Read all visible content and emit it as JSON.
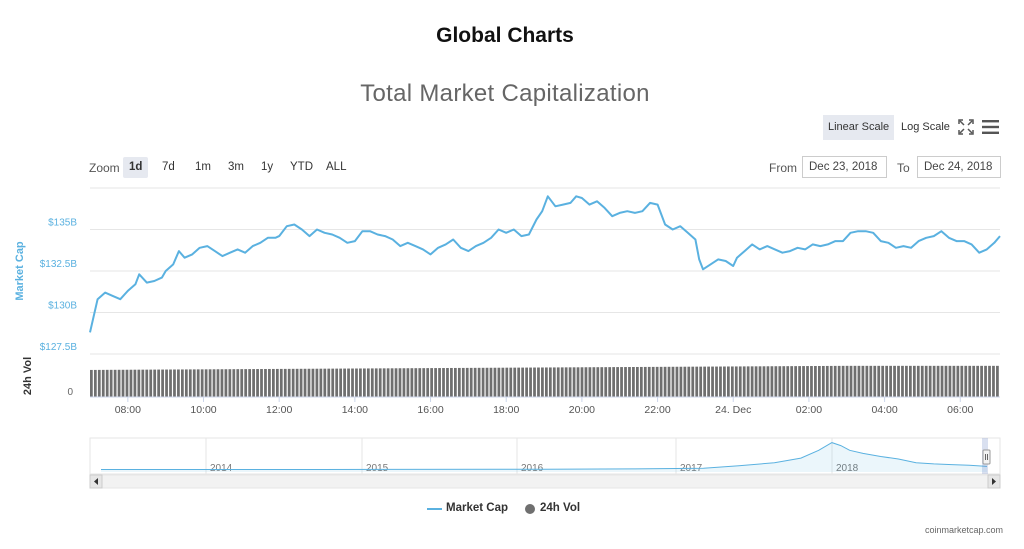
{
  "page": {
    "title": "Global Charts",
    "credit": "coinmarketcap.com"
  },
  "toolbar": {
    "linear_scale_label": "Linear Scale",
    "log_scale_label": "Log Scale",
    "fullscreen_icon": "fullscreen-icon",
    "menu_icon": "hamburger-menu-icon"
  },
  "zoom": {
    "label": "Zoom",
    "buttons": [
      "1d",
      "7d",
      "1m",
      "3m",
      "1y",
      "YTD",
      "ALL"
    ],
    "active": "1d"
  },
  "range": {
    "from_label": "From",
    "from_value": "Dec 23, 2018",
    "to_label": "To",
    "to_value": "Dec 24, 2018"
  },
  "colors": {
    "market_cap": "#5ab1e0",
    "volume": "#6f6f6f",
    "grid": "#e6e6e6",
    "active_button": "#e6e9f0"
  },
  "chart_data": {
    "type": "line",
    "title": "Total Market Capitalization",
    "ylabel": "Market Cap",
    "ylabel_volume": "24h Vol",
    "ylim": [
      127.5,
      137.5
    ],
    "ylim_volume_labels": [
      "0"
    ],
    "yticks": [
      "$127.5B",
      "$130B",
      "$132.5B",
      "$135B"
    ],
    "yticks_volume": [
      "0"
    ],
    "xticks": [
      "08:00",
      "10:00",
      "12:00",
      "14:00",
      "16:00",
      "18:00",
      "20:00",
      "22:00",
      "24. Dec",
      "02:00",
      "04:00",
      "06:00"
    ],
    "x_start_hour": 7.0,
    "x_end_hour": 31.05,
    "tick_hours": [
      8,
      10,
      12,
      14,
      16,
      18,
      20,
      22,
      24,
      26,
      28,
      30
    ],
    "series": [
      {
        "name": "Market Cap",
        "points": [
          [
            7.0,
            128.8
          ],
          [
            7.2,
            130.8
          ],
          [
            7.4,
            131.2
          ],
          [
            7.6,
            131.0
          ],
          [
            7.8,
            130.8
          ],
          [
            8.0,
            131.3
          ],
          [
            8.2,
            131.7
          ],
          [
            8.3,
            132.3
          ],
          [
            8.5,
            131.8
          ],
          [
            8.7,
            131.9
          ],
          [
            8.9,
            132.1
          ],
          [
            9.0,
            132.5
          ],
          [
            9.2,
            132.9
          ],
          [
            9.35,
            133.7
          ],
          [
            9.5,
            133.3
          ],
          [
            9.7,
            133.5
          ],
          [
            9.9,
            133.9
          ],
          [
            10.1,
            134.0
          ],
          [
            10.3,
            133.7
          ],
          [
            10.5,
            133.4
          ],
          [
            10.7,
            133.6
          ],
          [
            10.9,
            133.8
          ],
          [
            11.1,
            133.6
          ],
          [
            11.3,
            134.0
          ],
          [
            11.5,
            134.2
          ],
          [
            11.7,
            134.5
          ],
          [
            11.9,
            134.5
          ],
          [
            12.0,
            134.6
          ],
          [
            12.2,
            135.2
          ],
          [
            12.4,
            135.3
          ],
          [
            12.6,
            135.0
          ],
          [
            12.8,
            134.6
          ],
          [
            13.0,
            135.0
          ],
          [
            13.2,
            134.8
          ],
          [
            13.4,
            134.7
          ],
          [
            13.6,
            134.5
          ],
          [
            13.8,
            134.2
          ],
          [
            14.0,
            134.3
          ],
          [
            14.2,
            134.9
          ],
          [
            14.4,
            134.9
          ],
          [
            14.6,
            134.7
          ],
          [
            14.8,
            134.6
          ],
          [
            15.0,
            134.4
          ],
          [
            15.2,
            134.0
          ],
          [
            15.4,
            134.2
          ],
          [
            15.6,
            134.0
          ],
          [
            15.8,
            133.8
          ],
          [
            16.0,
            133.5
          ],
          [
            16.2,
            133.9
          ],
          [
            16.4,
            134.1
          ],
          [
            16.6,
            134.4
          ],
          [
            16.8,
            133.9
          ],
          [
            17.0,
            133.7
          ],
          [
            17.2,
            134.0
          ],
          [
            17.4,
            134.2
          ],
          [
            17.6,
            134.5
          ],
          [
            17.8,
            135.0
          ],
          [
            18.0,
            134.8
          ],
          [
            18.2,
            135.0
          ],
          [
            18.4,
            134.6
          ],
          [
            18.6,
            134.7
          ],
          [
            18.8,
            135.6
          ],
          [
            18.95,
            136.1
          ],
          [
            19.1,
            137.0
          ],
          [
            19.3,
            136.4
          ],
          [
            19.5,
            136.5
          ],
          [
            19.7,
            136.6
          ],
          [
            19.85,
            137.0
          ],
          [
            20.0,
            136.9
          ],
          [
            20.2,
            136.5
          ],
          [
            20.4,
            136.7
          ],
          [
            20.6,
            136.3
          ],
          [
            20.8,
            135.8
          ],
          [
            21.0,
            136.0
          ],
          [
            21.2,
            136.1
          ],
          [
            21.4,
            136.0
          ],
          [
            21.6,
            136.1
          ],
          [
            21.8,
            136.6
          ],
          [
            22.0,
            136.5
          ],
          [
            22.2,
            135.3
          ],
          [
            22.4,
            135.0
          ],
          [
            22.6,
            135.2
          ],
          [
            22.8,
            134.8
          ],
          [
            23.0,
            134.4
          ],
          [
            23.1,
            133.2
          ],
          [
            23.2,
            132.6
          ],
          [
            23.4,
            132.9
          ],
          [
            23.6,
            133.2
          ],
          [
            23.8,
            133.1
          ],
          [
            24.0,
            132.8
          ],
          [
            24.1,
            133.3
          ],
          [
            24.3,
            133.7
          ],
          [
            24.5,
            134.1
          ],
          [
            24.7,
            133.8
          ],
          [
            24.9,
            134.0
          ],
          [
            25.1,
            133.8
          ],
          [
            25.3,
            133.6
          ],
          [
            25.5,
            133.7
          ],
          [
            25.7,
            133.9
          ],
          [
            25.9,
            133.8
          ],
          [
            26.1,
            134.1
          ],
          [
            26.3,
            134.0
          ],
          [
            26.5,
            134.1
          ],
          [
            26.7,
            134.3
          ],
          [
            26.9,
            134.3
          ],
          [
            27.1,
            134.8
          ],
          [
            27.3,
            134.9
          ],
          [
            27.5,
            134.9
          ],
          [
            27.7,
            134.8
          ],
          [
            27.9,
            134.3
          ],
          [
            28.1,
            134.2
          ],
          [
            28.3,
            133.9
          ],
          [
            28.5,
            134.0
          ],
          [
            28.7,
            133.9
          ],
          [
            28.9,
            134.3
          ],
          [
            29.1,
            134.5
          ],
          [
            29.3,
            134.6
          ],
          [
            29.5,
            134.9
          ],
          [
            29.7,
            134.5
          ],
          [
            29.9,
            134.3
          ],
          [
            30.1,
            134.3
          ],
          [
            30.3,
            134.1
          ],
          [
            30.5,
            133.6
          ],
          [
            30.7,
            133.8
          ],
          [
            30.9,
            134.2
          ],
          [
            31.05,
            134.6
          ]
        ]
      },
      {
        "name": "24h Vol",
        "relative_levels": {
          "start": 0.66,
          "end": 0.76
        }
      }
    ],
    "navigator": {
      "year_labels": [
        "2014",
        "2015",
        "2016",
        "2017",
        "2018"
      ],
      "trend": [
        [
          0,
          0.08
        ],
        [
          0.25,
          0.08
        ],
        [
          0.5,
          0.09
        ],
        [
          0.6,
          0.1
        ],
        [
          0.68,
          0.12
        ],
        [
          0.72,
          0.2
        ],
        [
          0.76,
          0.3
        ],
        [
          0.79,
          0.45
        ],
        [
          0.81,
          0.7
        ],
        [
          0.825,
          0.95
        ],
        [
          0.835,
          0.85
        ],
        [
          0.845,
          0.7
        ],
        [
          0.86,
          0.6
        ],
        [
          0.88,
          0.5
        ],
        [
          0.9,
          0.42
        ],
        [
          0.92,
          0.3
        ],
        [
          0.94,
          0.26
        ],
        [
          0.96,
          0.24
        ],
        [
          0.98,
          0.22
        ],
        [
          1.0,
          0.18
        ]
      ]
    },
    "legend": {
      "position": "bottom-center",
      "items": [
        "Market Cap",
        "24h Vol"
      ]
    },
    "grid": true
  }
}
